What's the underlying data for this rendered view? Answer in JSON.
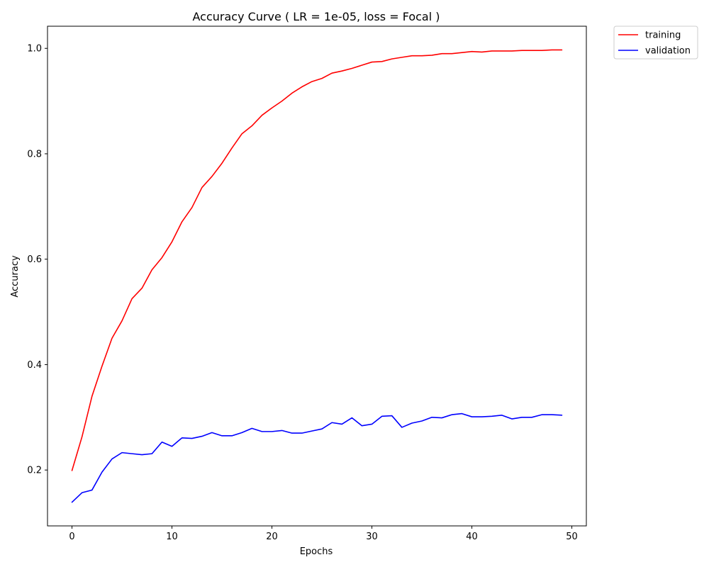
{
  "chart_data": {
    "type": "line",
    "title": "Accuracy Curve ( LR = 1e-05, loss = Focal )",
    "xlabel": "Epochs",
    "ylabel": "Accuracy",
    "xlim": [
      -2.45,
      51.45
    ],
    "ylim": [
      0.094,
      1.042
    ],
    "xticks": [
      0,
      10,
      20,
      30,
      40,
      50
    ],
    "xtick_labels": [
      "0",
      "10",
      "20",
      "30",
      "40",
      "50"
    ],
    "yticks": [
      0.2,
      0.4,
      0.6,
      0.8,
      1.0
    ],
    "ytick_labels": [
      "0.2",
      "0.4",
      "0.6",
      "0.8",
      "1.0"
    ],
    "grid": false,
    "legend_position": "outside top-right",
    "x": [
      0,
      1,
      2,
      3,
      4,
      5,
      6,
      7,
      8,
      9,
      10,
      11,
      12,
      13,
      14,
      15,
      16,
      17,
      18,
      19,
      20,
      21,
      22,
      23,
      24,
      25,
      26,
      27,
      28,
      29,
      30,
      31,
      32,
      33,
      34,
      35,
      36,
      37,
      38,
      39,
      40,
      41,
      42,
      43,
      44,
      45,
      46,
      47,
      48,
      49
    ],
    "series": [
      {
        "name": "training",
        "color": "#ff0000",
        "values": [
          0.199,
          0.263,
          0.34,
          0.397,
          0.45,
          0.483,
          0.525,
          0.545,
          0.58,
          0.603,
          0.633,
          0.671,
          0.698,
          0.736,
          0.757,
          0.782,
          0.811,
          0.838,
          0.853,
          0.873,
          0.887,
          0.9,
          0.915,
          0.927,
          0.937,
          0.943,
          0.953,
          0.957,
          0.962,
          0.968,
          0.974,
          0.975,
          0.98,
          0.983,
          0.986,
          0.986,
          0.987,
          0.99,
          0.99,
          0.992,
          0.994,
          0.993,
          0.995,
          0.995,
          0.995,
          0.996,
          0.996,
          0.996,
          0.997,
          0.997
        ]
      },
      {
        "name": "validation",
        "color": "#0000ff",
        "values": [
          0.139,
          0.157,
          0.162,
          0.196,
          0.221,
          0.233,
          0.231,
          0.229,
          0.231,
          0.253,
          0.245,
          0.261,
          0.26,
          0.264,
          0.271,
          0.265,
          0.265,
          0.271,
          0.279,
          0.273,
          0.273,
          0.275,
          0.27,
          0.27,
          0.274,
          0.278,
          0.29,
          0.287,
          0.299,
          0.284,
          0.287,
          0.302,
          0.303,
          0.281,
          0.289,
          0.293,
          0.3,
          0.299,
          0.305,
          0.307,
          0.301,
          0.301,
          0.302,
          0.304,
          0.297,
          0.3,
          0.3,
          0.305,
          0.305,
          0.304
        ]
      }
    ]
  }
}
